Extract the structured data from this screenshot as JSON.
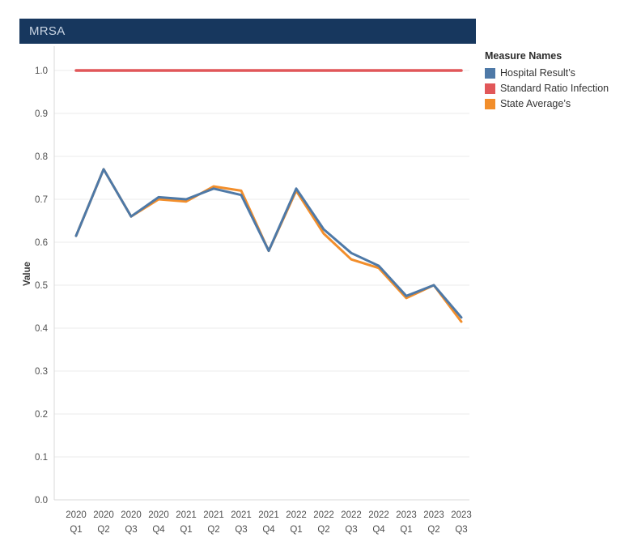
{
  "title_bar": {
    "label": "MRSA",
    "bg": "#17375E",
    "text_color": "#C9D4E2"
  },
  "legend": {
    "title": "Measure Names",
    "items": [
      {
        "label": "Hospital Result’s",
        "color": "#4E79A7"
      },
      {
        "label": "Standard Ratio Infection",
        "color": "#E15759"
      },
      {
        "label": "State Average’s",
        "color": "#F28E2B"
      }
    ]
  },
  "chart_data": {
    "type": "line",
    "title": "MRSA",
    "xlabel": "",
    "ylabel": "Value",
    "ylim": [
      0.0,
      1.0
    ],
    "grid": "horizontal",
    "legend_position": "top-right",
    "y_ticks": [
      {
        "v": 0.0,
        "label": "0.0"
      },
      {
        "v": 0.1,
        "label": "0.1"
      },
      {
        "v": 0.2,
        "label": "0.2"
      },
      {
        "v": 0.3,
        "label": "0.3"
      },
      {
        "v": 0.4,
        "label": "0.4"
      },
      {
        "v": 0.5,
        "label": "0.5"
      },
      {
        "v": 0.6,
        "label": "0.6"
      },
      {
        "v": 0.7,
        "label": "0.7"
      },
      {
        "v": 0.8,
        "label": "0.8"
      },
      {
        "v": 0.9,
        "label": "0.9"
      },
      {
        "v": 1.0,
        "label": "1.0"
      }
    ],
    "categories": [
      {
        "year": "2020",
        "quarter": "Q1"
      },
      {
        "year": "2020",
        "quarter": "Q2"
      },
      {
        "year": "2020",
        "quarter": "Q3"
      },
      {
        "year": "2020",
        "quarter": "Q4"
      },
      {
        "year": "2021",
        "quarter": "Q1"
      },
      {
        "year": "2021",
        "quarter": "Q2"
      },
      {
        "year": "2021",
        "quarter": "Q3"
      },
      {
        "year": "2021",
        "quarter": "Q4"
      },
      {
        "year": "2022",
        "quarter": "Q1"
      },
      {
        "year": "2022",
        "quarter": "Q2"
      },
      {
        "year": "2022",
        "quarter": "Q3"
      },
      {
        "year": "2022",
        "quarter": "Q4"
      },
      {
        "year": "2023",
        "quarter": "Q1"
      },
      {
        "year": "2023",
        "quarter": "Q2"
      },
      {
        "year": "2023",
        "quarter": "Q3"
      }
    ],
    "series": [
      {
        "name": "Hospital Result’s",
        "color": "#4E79A7",
        "width": 3,
        "values": [
          0.615,
          0.77,
          0.66,
          0.705,
          0.7,
          0.725,
          0.71,
          0.58,
          0.725,
          0.63,
          0.575,
          0.545,
          0.475,
          0.5,
          0.425
        ]
      },
      {
        "name": "Standard Ratio Infection",
        "color": "#E15759",
        "width": 3.5,
        "values": [
          1.0,
          1.0,
          1.0,
          1.0,
          1.0,
          1.0,
          1.0,
          1.0,
          1.0,
          1.0,
          1.0,
          1.0,
          1.0,
          1.0,
          1.0
        ]
      },
      {
        "name": "State Average’s",
        "color": "#F28E2B",
        "width": 3,
        "values": [
          0.615,
          0.77,
          0.66,
          0.7,
          0.695,
          0.73,
          0.72,
          0.58,
          0.72,
          0.62,
          0.56,
          0.54,
          0.47,
          0.5,
          0.415
        ]
      }
    ]
  }
}
